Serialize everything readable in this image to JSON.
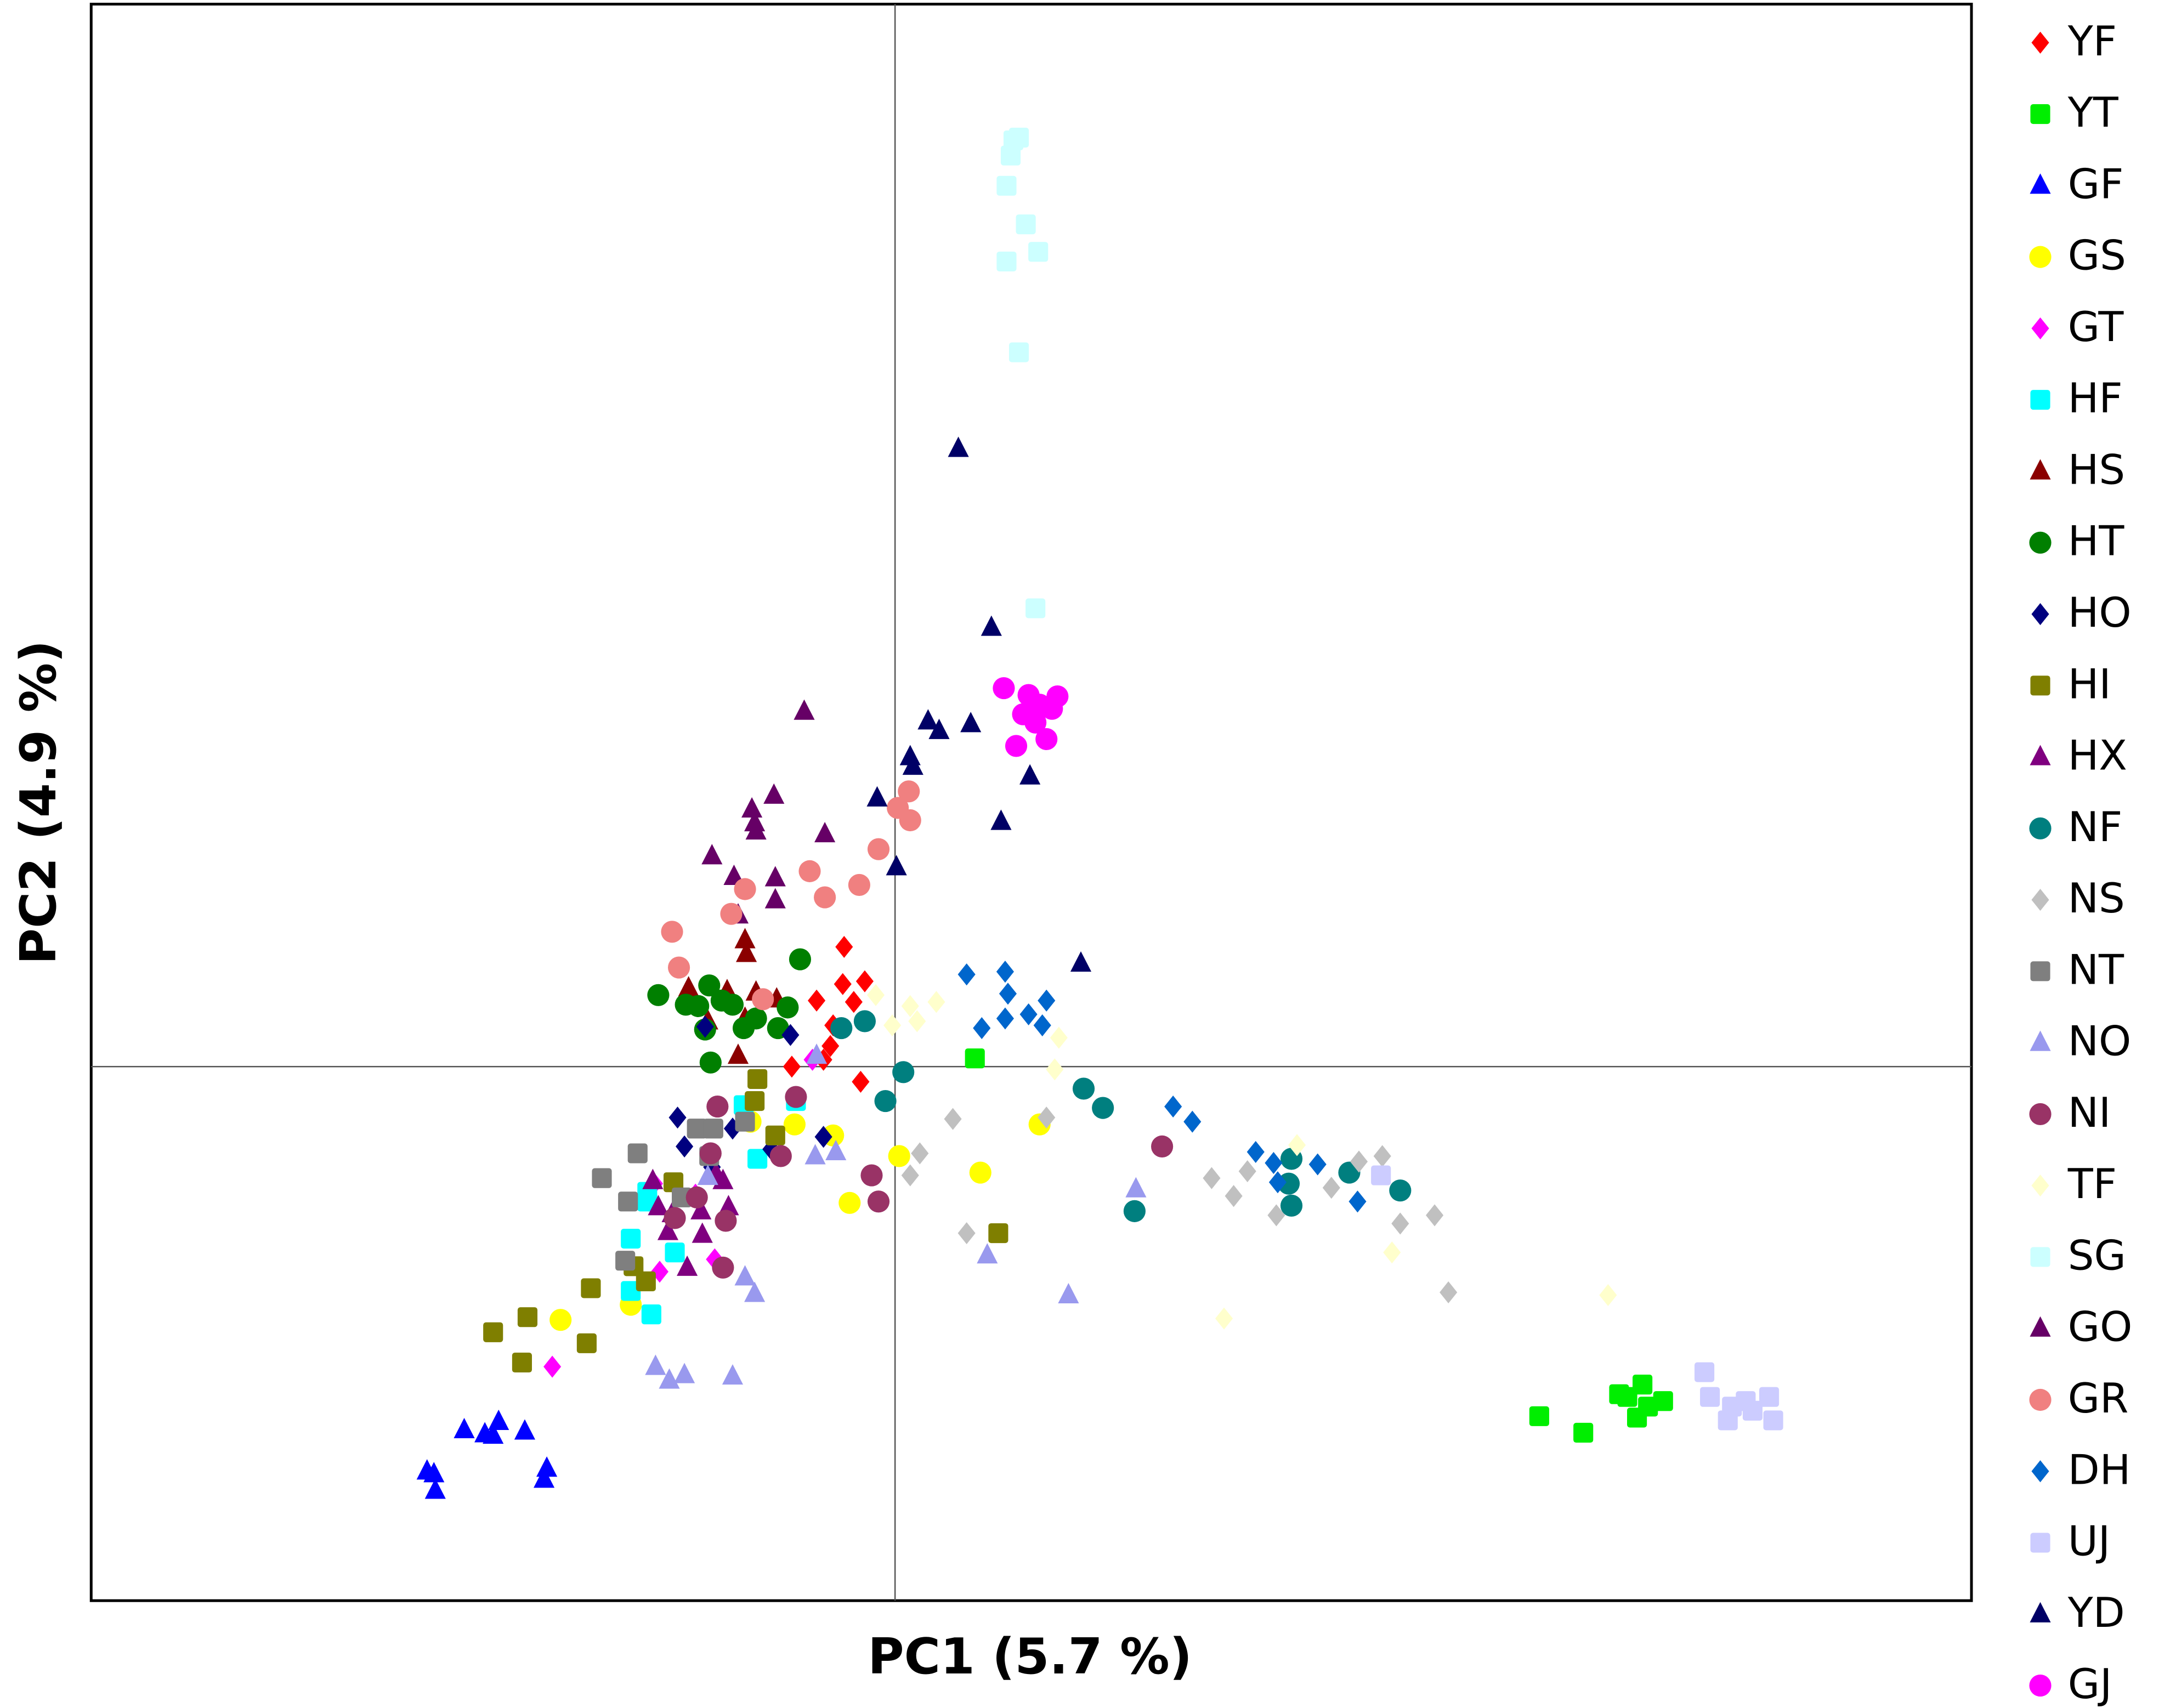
{
  "chart_data": {
    "type": "scatter",
    "xlabel": "PC1 (5.7 %)",
    "ylabel": "PC2 (4.9 %)",
    "xlim": [
      -58.4,
      78.2
    ],
    "ylim": [
      -38.8,
      77.2
    ],
    "vline": 0,
    "hline": 0,
    "legend": "right",
    "series": [
      {
        "name": "YF",
        "color": "#ff0000",
        "marker": "diamond",
        "x": [
          -3.7,
          -2.2,
          -5.7,
          -4.5,
          -3.0,
          -4.7,
          -7.5,
          -2.5,
          -5.2,
          -3.8
        ],
        "y": [
          8.7,
          6.2,
          4.8,
          3.0,
          4.7,
          1.5,
          0,
          -1.1,
          0.5,
          6.0
        ]
      },
      {
        "name": "YT",
        "color": "#00ee00",
        "marker": "square",
        "x": [
          5.8,
          46.8,
          50.0,
          52.6,
          54.3,
          54.7,
          55.8,
          53.9,
          53.2
        ],
        "y": [
          0.6,
          -25.4,
          -26.6,
          -23.8,
          -23.1,
          -24.7,
          -24.3,
          -25.5,
          -24.0
        ]
      },
      {
        "name": "GF",
        "color": "#0000ff",
        "marker": "triangle",
        "x": [
          -34,
          -33.4,
          -33.5,
          -31.3,
          -29.2,
          -28.8,
          -26.9,
          -25.3,
          -25.5,
          -29.8
        ],
        "y": [
          -29.4,
          -30.8,
          -29.6,
          -26.4,
          -26.8,
          -25.8,
          -26.5,
          -29.2,
          -30.0,
          -26.7
        ]
      },
      {
        "name": "GS",
        "color": "#ffff00",
        "marker": "circle",
        "x": [
          -24.3,
          -19.2,
          -3.3,
          0.3,
          6.2,
          10.5,
          -7.3,
          -4.5,
          -10.5
        ],
        "y": [
          -18.4,
          -17.3,
          -9.9,
          -6.5,
          -7.7,
          -4.2,
          -4.2,
          -5.0,
          -4.0
        ]
      },
      {
        "name": "GT",
        "color": "#ff00ff",
        "marker": "diamond",
        "x": [
          -24.9,
          -17.1,
          -13.1,
          -14.5,
          -8.5,
          -6.0,
          -17.5
        ],
        "y": [
          -21.8,
          -14.9,
          -14.0,
          -9.3,
          -6.5,
          0.5,
          -8.5
        ]
      },
      {
        "name": "HF",
        "color": "#00ffff",
        "marker": "square",
        "x": [
          -19.2,
          -17.7,
          -18,
          -11,
          -10,
          -7.2,
          -18,
          -16,
          -19.2
        ],
        "y": [
          -16.3,
          -18.0,
          -9.8,
          -2.8,
          -6.7,
          -2.5,
          -9.1,
          -13.5,
          -12.5
        ]
      },
      {
        "name": "HS",
        "color": "#8b0000",
        "marker": "triangle",
        "x": [
          -10.9,
          -10.8,
          -12.2,
          -15,
          -10.1,
          -11.4,
          -13.6,
          -8.6,
          -10.9
        ],
        "y": [
          9.2,
          8.2,
          5.5,
          5.7,
          5.4,
          0.8,
          3.3,
          4.9,
          3.5
        ]
      },
      {
        "name": "HT",
        "color": "#007f00",
        "marker": "circle",
        "x": [
          -17.2,
          -15.2,
          -13.5,
          -12.6,
          -11.8,
          -11,
          -10.1,
          -13.4,
          -8.5,
          -6.9,
          -7.8,
          -13.8,
          -14.3
        ],
        "y": [
          5.2,
          4.5,
          5.9,
          4.8,
          4.5,
          2.8,
          3.5,
          0.3,
          2.8,
          7.8,
          4.3,
          2.7,
          4.4
        ]
      },
      {
        "name": "HO",
        "color": "#00007f",
        "marker": "diamond",
        "x": [
          -15.8,
          -15.3,
          -13.8,
          -7.6,
          -5.2,
          -13.3,
          -11.8,
          -9
        ],
        "y": [
          -3.7,
          -5.8,
          2.9,
          2.3,
          -5.1,
          -7.3,
          -4.5,
          -6
        ]
      },
      {
        "name": "HI",
        "color": "#7f7f00",
        "marker": "square",
        "x": [
          -29.2,
          -26.7,
          -27.1,
          -22.4,
          -22.1,
          -18.1,
          -19,
          -16.1,
          -10,
          -8.7,
          7.5,
          -10.2
        ],
        "y": [
          -19.3,
          -18.2,
          -21.5,
          -20.1,
          -16.1,
          -15.6,
          -14.5,
          -8.4,
          -0.9,
          -5.0,
          -12.1,
          -2.5
        ]
      },
      {
        "name": "HX",
        "color": "#7f007f",
        "marker": "triangle",
        "x": [
          -17.6,
          -17.2,
          -16.2,
          -15.1,
          -14.1,
          -12.5,
          -12.1,
          -16.5,
          -14,
          -13
        ],
        "y": [
          -8.3,
          -10.2,
          -10.7,
          -14.6,
          -10.5,
          -8.3,
          -10.2,
          -12.0,
          -12.2,
          -7.8
        ]
      },
      {
        "name": "NF",
        "color": "#007f7f",
        "marker": "circle",
        "x": [
          -3.9,
          -2.2,
          0.6,
          -0.7,
          13.7,
          15.1,
          17.4,
          28.8,
          28.8,
          33,
          36.7,
          28.6
        ],
        "y": [
          2.8,
          3.3,
          -0.4,
          -2.5,
          -1.6,
          -3.0,
          -10.5,
          -6.7,
          -10.1,
          -7.7,
          -9.0,
          -8.5
        ]
      },
      {
        "name": "NS",
        "color": "#c0c0c0",
        "marker": "diamond",
        "x": [
          1.1,
          1.8,
          4.2,
          5.2,
          11,
          23,
          24.6,
          25.6,
          27.7,
          31.7,
          33.7,
          35.4,
          36.7,
          39.2,
          40.2
        ],
        "y": [
          -7.9,
          -6.3,
          -3.8,
          -12.1,
          -3.7,
          -8.1,
          -9.4,
          -7.6,
          -10.8,
          -8.8,
          -6.9,
          -6.5,
          -11.4,
          -10.8,
          -16.4
        ]
      },
      {
        "name": "NT",
        "color": "#7f7f7f",
        "marker": "square",
        "x": [
          -21.3,
          -19.4,
          -18.7,
          -19.6,
          -14.4,
          -13.2,
          -10.9,
          -13.5,
          -15.5
        ],
        "y": [
          -8.1,
          -9.8,
          -6.3,
          -14.1,
          -4.5,
          -4.5,
          -4.0,
          -6.5,
          -9.5
        ]
      },
      {
        "name": "NO",
        "color": "#9999ee",
        "marker": "triangle",
        "x": [
          -17.4,
          -16.4,
          -15.3,
          -11.8,
          -10.9,
          -10.2,
          -5.8,
          -4.3,
          6.7,
          12.6,
          17.5,
          -13.6,
          -5.7
        ],
        "y": [
          -21.8,
          -22.8,
          -22.4,
          -22.5,
          -15.3,
          -16.5,
          -6.5,
          -6.2,
          -13.7,
          -16.6,
          -8.9,
          -8.0,
          0.8
        ]
      },
      {
        "name": "NI",
        "color": "#993366",
        "marker": "circle",
        "x": [
          -12.9,
          -12.3,
          -12.5,
          -8.3,
          -7.2,
          -1.7,
          -1.2,
          19.4,
          -13.4,
          -14.4,
          -16
        ],
        "y": [
          -2.9,
          -11.2,
          -14.6,
          -6.5,
          -2.2,
          -7.9,
          -9.8,
          -5.8,
          -6.3,
          -9.5,
          -11
        ]
      },
      {
        "name": "TF",
        "color": "#ffffcc",
        "marker": "diamond",
        "x": [
          -1.4,
          -0.2,
          1.6,
          3,
          11.9,
          11.6,
          29.2,
          36.1,
          23.9,
          51.8,
          1.1
        ],
        "y": [
          5.2,
          3.0,
          3.3,
          4.7,
          2.1,
          -0.2,
          -5.7,
          -13.5,
          -18.3,
          -16.6,
          4.4
        ]
      },
      {
        "name": "SG",
        "color": "#ccffff",
        "marker": "square",
        "x": [
          8.6,
          9.0,
          8.4,
          8.1,
          9.5,
          10.4,
          8.1,
          9,
          10.2
        ],
        "y": [
          67.3,
          67.5,
          66.2,
          64.0,
          61.2,
          59.2,
          58.5,
          51.9,
          33.3
        ]
      },
      {
        "name": "GO",
        "color": "#660066",
        "marker": "triangle",
        "x": [
          -6.6,
          -10.4,
          -8.8,
          -10.1,
          -13.3,
          -11.7,
          -8.7,
          -8.7,
          -5.1,
          -11.4,
          -10.2
        ],
        "y": [
          25.8,
          18.7,
          19.7,
          17.1,
          15.3,
          13.8,
          13.7,
          12.1,
          16.9,
          11.0,
          17.7
        ]
      },
      {
        "name": "GR",
        "color": "#f08080",
        "marker": "circle",
        "x": [
          -16.2,
          -15.7,
          -10.9,
          -11.9,
          -6.2,
          -5.1,
          -2.6,
          -1.2,
          1.0,
          1.1,
          0.2,
          -9.6
        ],
        "y": [
          9.8,
          7.2,
          12.9,
          11.1,
          14.2,
          12.3,
          13.2,
          15.8,
          20.0,
          17.9,
          18.8,
          4.9
        ]
      },
      {
        "name": "DH",
        "color": "#0066cc",
        "marker": "diamond",
        "x": [
          5.2,
          8,
          8.2,
          11,
          6.3,
          8,
          9.7,
          10.7,
          20.2,
          21.6,
          26.2,
          27.8,
          30.7,
          33.6,
          27.5
        ],
        "y": [
          6.7,
          6.9,
          5.3,
          4.8,
          2.8,
          3.5,
          3.8,
          3.0,
          -2.9,
          -4.0,
          -6.2,
          -8.4,
          -7.1,
          -9.8,
          -7.0
        ]
      },
      {
        "name": "UJ",
        "color": "#ccccff",
        "marker": "square",
        "x": [
          35.3,
          58.8,
          59.2,
          60.5,
          61.8,
          63.5,
          63.8,
          60.8,
          62.3
        ],
        "y": [
          -7.9,
          -22.2,
          -24.0,
          -25.7,
          -24.3,
          -24.0,
          -25.7,
          -24.7,
          -25.0
        ]
      },
      {
        "name": "YD",
        "color": "#000066",
        "marker": "triangle",
        "x": [
          4.6,
          7.0,
          2.4,
          3.2,
          5.5,
          1.1,
          1.3,
          -1.3,
          0.1,
          7.7,
          9.8,
          13.5
        ],
        "y": [
          44.9,
          31.9,
          25.1,
          24.4,
          24.9,
          22.5,
          21.8,
          19.5,
          14.5,
          17.8,
          21.1,
          7.5
        ]
      },
      {
        "name": "GJ",
        "color": "#ff00ff",
        "marker": "circle",
        "x": [
          7.9,
          9.3,
          10.5,
          11.8,
          11,
          8.8,
          10.2,
          11.4,
          9.7
        ],
        "y": [
          27.5,
          25.6,
          26.3,
          26.9,
          23.8,
          23.3,
          25.0,
          26.0,
          27.0
        ]
      }
    ]
  }
}
